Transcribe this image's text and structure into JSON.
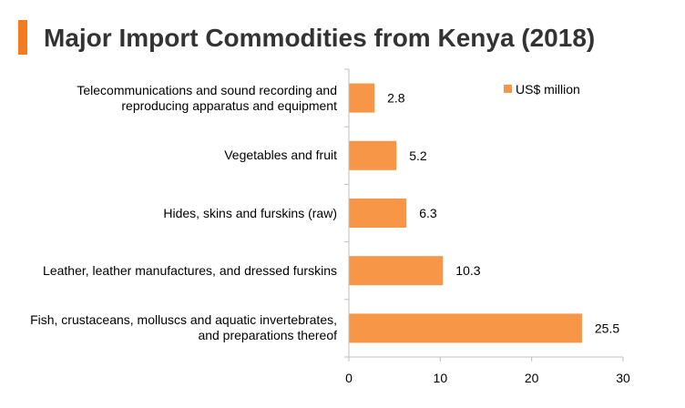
{
  "colors": {
    "accent": "#f47b20",
    "bar": "#f79646",
    "title_text": "#333333",
    "axis": "#bfbfbf"
  },
  "chart_data": {
    "type": "bar",
    "orientation": "horizontal",
    "title": "Major Import Commodities from Kenya (2018)",
    "categories": [
      "Telecommunications and sound recording and reproducing apparatus and equipment",
      "Vegetables and fruit",
      "Hides, skins and furskins (raw)",
      "Leather, leather manufactures, and dressed furskins",
      "Fish, crustaceans, molluscs and aquatic invertebrates, and preparations thereof"
    ],
    "series": [
      {
        "name": "US$ million",
        "values": [
          2.8,
          5.2,
          6.3,
          10.3,
          25.5
        ]
      }
    ],
    "value_labels": [
      "2.8",
      "5.2",
      "6.3",
      "10.3",
      "25.5"
    ],
    "xlim": [
      0,
      30
    ],
    "x_ticks": [
      "0",
      "10",
      "20",
      "30"
    ],
    "grid": false,
    "legend_position": "top-right"
  }
}
